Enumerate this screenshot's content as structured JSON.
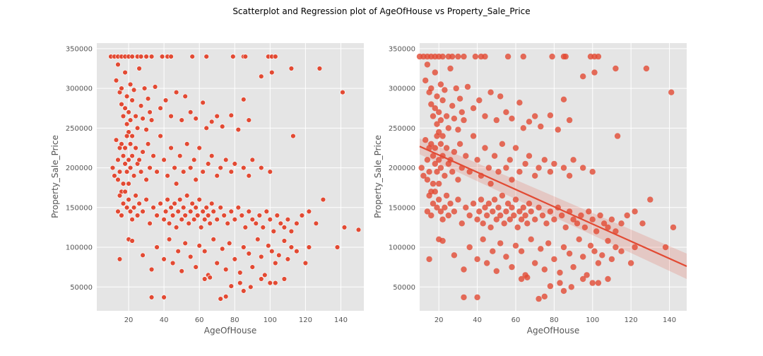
{
  "figure": {
    "title": "Scatterplot and Regression plot of AgeOfHouse vs Property_Sale_Price"
  },
  "chart_data": [
    {
      "type": "scatter",
      "title": "",
      "xlabel": "AgeOfHouse",
      "ylabel": "Property_Sale_Price",
      "xlim": [
        2,
        153
      ],
      "ylim": [
        20000,
        357000
      ],
      "xticks": [
        20,
        40,
        60,
        80,
        100,
        120,
        140
      ],
      "yticks": [
        50000,
        100000,
        150000,
        200000,
        250000,
        300000,
        350000
      ],
      "grid": true,
      "point_color": "#E24A33",
      "point_edge": "#ffffff",
      "background": "#E5E5E5",
      "series": [
        {
          "x": [
            10,
            12,
            14,
            16,
            18,
            20,
            22,
            25,
            27,
            30,
            33,
            39,
            42,
            44,
            56,
            64,
            79,
            85,
            86,
            99,
            101,
            103
          ],
          "y": [
            340000,
            340000,
            340000,
            340000,
            340000,
            340000,
            340000,
            340000,
            340000,
            340000,
            340000,
            340000,
            340000,
            340000,
            340000,
            340000,
            340000,
            340000,
            340000,
            340000,
            340000,
            340000
          ]
        },
        {
          "x": [
            13,
            14,
            15,
            16,
            16,
            17,
            18,
            18,
            19,
            19,
            20,
            20,
            21,
            21,
            22,
            22,
            23,
            24,
            25,
            26,
            27,
            28,
            29,
            30,
            31,
            32,
            33,
            35,
            38,
            41,
            44,
            47,
            50,
            52,
            55,
            58,
            62,
            64,
            67,
            70,
            73,
            78,
            82,
            85,
            88,
            95,
            101,
            112,
            128,
            141
          ],
          "y": [
            310000,
            330000,
            295000,
            280000,
            300000,
            265000,
            320000,
            275000,
            255000,
            290000,
            270000,
            245000,
            305000,
            260000,
            285000,
            240000,
            298000,
            265000,
            250000,
            325000,
            278000,
            262000,
            300000,
            248000,
            287000,
            270000,
            260000,
            302000,
            275000,
            285000,
            265000,
            295000,
            260000,
            290000,
            270000,
            262000,
            282000,
            250000,
            258000,
            265000,
            252000,
            266000,
            248000,
            286000,
            260000,
            315000,
            320000,
            325000,
            325000,
            295000
          ]
        },
        {
          "x": [
            11,
            12,
            13,
            14,
            14,
            15,
            15,
            16,
            16,
            17,
            17,
            18,
            18,
            19,
            19,
            20,
            20,
            21,
            21,
            22,
            23,
            24,
            25,
            26,
            27,
            28,
            30,
            31,
            32,
            34,
            36,
            38,
            40,
            42,
            44,
            46,
            47,
            49,
            51,
            53,
            55,
            57,
            58,
            60,
            62,
            65,
            67,
            70,
            72,
            75,
            78,
            80,
            85,
            88,
            90,
            95,
            100,
            113
          ],
          "y": [
            200000,
            190000,
            235000,
            210000,
            185000,
            225000,
            195000,
            230000,
            170000,
            215000,
            180000,
            205000,
            225000,
            195000,
            240000,
            210000,
            180000,
            230000,
            200000,
            215000,
            190000,
            225000,
            205000,
            210000,
            195000,
            220000,
            185000,
            230000,
            200000,
            215000,
            195000,
            240000,
            210000,
            190000,
            225000,
            200000,
            180000,
            215000,
            195000,
            230000,
            200000,
            210000,
            185000,
            225000,
            195000,
            205000,
            215000,
            190000,
            200000,
            210000,
            195000,
            205000,
            200000,
            190000,
            210000,
            200000,
            195000,
            240000
          ]
        },
        {
          "x": [
            14,
            15,
            16,
            17,
            18,
            19,
            20,
            21,
            22,
            23,
            24,
            25,
            26,
            28,
            30,
            32,
            34,
            36,
            38,
            40,
            41,
            42,
            43,
            44,
            45,
            46,
            47,
            48,
            49,
            50,
            51,
            52,
            53,
            54,
            55,
            56,
            57,
            58,
            59,
            60,
            61,
            62,
            63,
            64,
            65,
            66,
            67,
            68,
            70,
            72,
            74,
            76,
            78,
            80,
            82,
            84,
            86,
            88,
            90,
            92,
            94,
            96,
            98,
            100,
            102,
            104,
            106,
            108,
            110,
            112,
            115,
            118,
            122,
            126,
            130,
            138,
            142,
            150
          ],
          "y": [
            145000,
            165000,
            140000,
            155000,
            170000,
            150000,
            160000,
            145000,
            135000,
            150000,
            165000,
            140000,
            155000,
            145000,
            160000,
            130000,
            150000,
            140000,
            155000,
            135000,
            145000,
            160000,
            130000,
            150000,
            140000,
            155000,
            125000,
            145000,
            160000,
            135000,
            150000,
            140000,
            165000,
            130000,
            145000,
            155000,
            135000,
            150000,
            140000,
            160000,
            125000,
            145000,
            135000,
            150000,
            140000,
            130000,
            155000,
            145000,
            135000,
            150000,
            140000,
            130000,
            145000,
            135000,
            150000,
            140000,
            125000,
            145000,
            135000,
            130000,
            140000,
            125000,
            145000,
            135000,
            120000,
            140000,
            130000,
            125000,
            135000,
            120000,
            130000,
            140000,
            145000,
            130000,
            160000,
            100000,
            125000,
            122000
          ]
        },
        {
          "x": [
            15,
            20,
            22,
            28,
            33,
            36,
            40,
            43,
            45,
            48,
            50,
            52,
            55,
            58,
            60,
            63,
            65,
            68,
            70,
            73,
            75,
            77,
            80,
            83,
            85,
            88,
            90,
            93,
            95,
            97,
            99,
            101,
            103,
            105,
            108,
            110,
            112,
            115,
            120,
            122
          ],
          "y": [
            85000,
            110000,
            108000,
            90000,
            72000,
            100000,
            85000,
            110000,
            80000,
            95000,
            70000,
            105000,
            88000,
            75000,
            102000,
            95000,
            65000,
            110000,
            80000,
            98000,
            72000,
            105000,
            85000,
            68000,
            100000,
            92000,
            75000,
            110000,
            88000,
            65000,
            102000,
            95000,
            80000,
            90000,
            108000,
            85000,
            100000,
            95000,
            80000,
            100000
          ]
        },
        {
          "x": [
            33,
            40,
            63,
            66,
            72,
            75,
            78,
            83,
            85,
            89,
            95,
            100,
            103,
            108
          ],
          "y": [
            37000,
            37000,
            60000,
            62000,
            35000,
            38000,
            51000,
            55000,
            45000,
            50000,
            60000,
            55000,
            55000,
            60000
          ]
        }
      ]
    },
    {
      "type": "scatter",
      "title": "",
      "xlabel": "AgeOfHouse",
      "ylabel": "Property_Sale_Price",
      "xlim": [
        10,
        149
      ],
      "ylim": [
        20000,
        357000
      ],
      "xticks": [
        20,
        40,
        60,
        80,
        100,
        120,
        140
      ],
      "yticks": [
        50000,
        100000,
        150000,
        200000,
        250000,
        300000,
        350000
      ],
      "grid": true,
      "point_color": "#E24A33",
      "background": "#E5E5E5",
      "regression": {
        "x": [
          10,
          149
        ],
        "y": [
          227000,
          76000
        ],
        "ci_halfwidth_start": 10000,
        "ci_halfwidth_end": 16000
      },
      "series_source": "same points as left panel"
    }
  ]
}
